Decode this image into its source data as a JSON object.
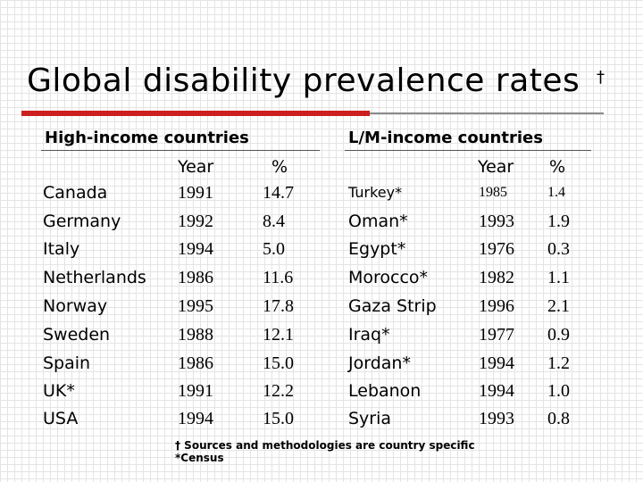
{
  "title": "Global disability prevalence rates",
  "title_marker": "†",
  "high_income": {
    "header": "High-income countries",
    "year_label": "Year",
    "pct_label": "%",
    "rows": [
      {
        "country": "Canada",
        "year": "1991",
        "pct": "14.7"
      },
      {
        "country": "Germany",
        "year": "1992",
        "pct": "8.4"
      },
      {
        "country": "Italy",
        "year": "1994",
        "pct": "5.0"
      },
      {
        "country": "Netherlands",
        "year": "1986",
        "pct": "11.6"
      },
      {
        "country": "Norway",
        "year": "1995",
        "pct": "17.8"
      },
      {
        "country": "Sweden",
        "year": "1988",
        "pct": "12.1"
      },
      {
        "country": "Spain",
        "year": "1986",
        "pct": "15.0"
      },
      {
        "country": "UK*",
        "year": "1991",
        "pct": "12.2"
      },
      {
        "country": "USA",
        "year": "1994",
        "pct": "15.0"
      }
    ]
  },
  "lm_income": {
    "header": "L/M-income countries",
    "year_label": "Year",
    "pct_label": "%",
    "rows": [
      {
        "country": "Turkey*",
        "year": "1985",
        "pct": "1.4"
      },
      {
        "country": "Oman*",
        "year": "1993",
        "pct": "1.9"
      },
      {
        "country": "Egypt*",
        "year": "1976",
        "pct": "0.3"
      },
      {
        "country": "Morocco*",
        "year": "1982",
        "pct": "1.1"
      },
      {
        "country": "Gaza Strip",
        "year": "1996",
        "pct": "2.1"
      },
      {
        "country": "Iraq*",
        "year": "1977",
        "pct": "0.9"
      },
      {
        "country": "Jordan*",
        "year": "1994",
        "pct": "1.2"
      },
      {
        "country": "Lebanon",
        "year": "1994",
        "pct": "1.0"
      },
      {
        "country": "Syria",
        "year": "1993",
        "pct": "0.8"
      }
    ]
  },
  "footnotes": [
    "† Sources and methodologies are country specific",
    "*Census"
  ],
  "colors": {
    "accent_rule": "#cc1f1f",
    "secondary_rule": "#8a8a8a",
    "grid": "#e4e4e4"
  }
}
